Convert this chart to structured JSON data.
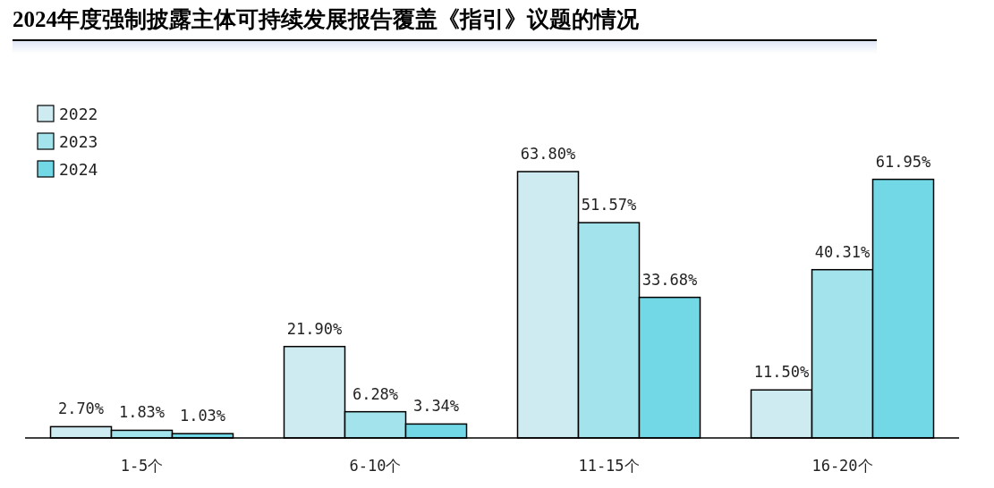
{
  "chart_data": {
    "type": "bar",
    "title": "2024年度强制披露主体可持续发展报告覆盖《指引》议题的情况",
    "categories": [
      "1-5个",
      "6-10个",
      "11-15个",
      "16-20个"
    ],
    "series": [
      {
        "name": "2022",
        "color": "#cdebf0",
        "values": [
          2.7,
          21.9,
          63.8,
          11.5
        ],
        "value_labels": [
          "2.70%",
          "21.90%",
          "63.80%",
          "11.50%"
        ]
      },
      {
        "name": "2023",
        "color": "#a3e3eb",
        "values": [
          1.83,
          6.28,
          51.57,
          40.31
        ],
        "value_labels": [
          "1.83%",
          "6.28%",
          "51.57%",
          "40.31%"
        ]
      },
      {
        "name": "2024",
        "color": "#72d8e6",
        "values": [
          1.03,
          3.34,
          33.68,
          61.95
        ],
        "value_labels": [
          "1.03%",
          "3.34%",
          "33.68%",
          "61.95%"
        ]
      }
    ],
    "legend": "top left"
  }
}
